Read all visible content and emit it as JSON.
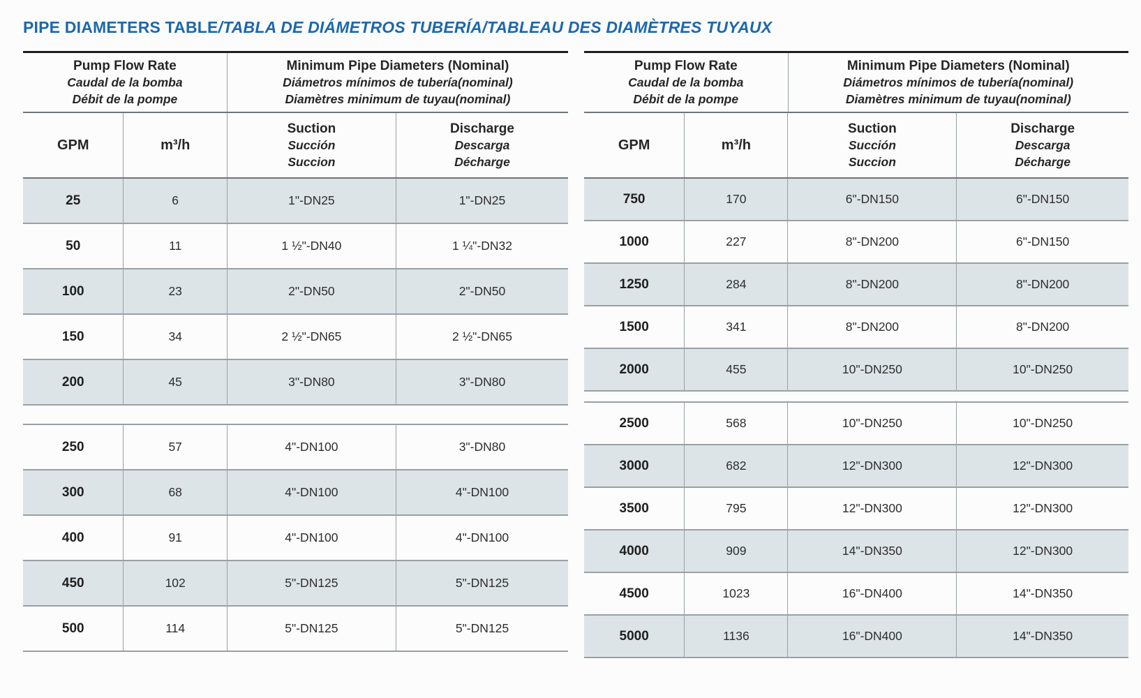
{
  "title": {
    "main": "PIPE DIAMETERS TABLE",
    "translations": "/TABLA DE DIÁMETROS TUBERÍA/TABLEAU DES DIAMÈTRES TUYAUX"
  },
  "colors": {
    "title_blue": "#1b68ae",
    "row_shade": "#dde4e8",
    "top_rule": "#1e1e1e",
    "grid_line": "#98a0a4"
  },
  "header": {
    "flow_group": {
      "en": "Pump Flow Rate",
      "es": "Caudal de la bomba",
      "fr": "Débit de la pompe"
    },
    "diameter_group": {
      "en": "Minimum Pipe Diameters (Nominal)",
      "es": "Diámetros mínimos de tubería(nominal)",
      "fr": "Diamètres minimum de tuyau(nominal)"
    },
    "col_gpm": "GPM",
    "col_m3h": "m³/h",
    "col_suction": {
      "en": "Suction",
      "es": "Succión",
      "fr": "Succion"
    },
    "col_discharge": {
      "en": "Discharge",
      "es": "Descarga",
      "fr": "Décharge"
    }
  },
  "tables": [
    {
      "id": "left",
      "sections": [
        {
          "rows": [
            {
              "gpm": "25",
              "m3h": "6",
              "suction": "1\"-DN25",
              "discharge": "1\"-DN25",
              "shaded": true
            },
            {
              "gpm": "50",
              "m3h": "11",
              "suction": "1 ½\"-DN40",
              "discharge": "1 ¼\"-DN32",
              "shaded": false
            },
            {
              "gpm": "100",
              "m3h": "23",
              "suction": "2\"-DN50",
              "discharge": "2\"-DN50",
              "shaded": true
            },
            {
              "gpm": "150",
              "m3h": "34",
              "suction": "2 ½\"-DN65",
              "discharge": "2 ½\"-DN65",
              "shaded": false
            },
            {
              "gpm": "200",
              "m3h": "45",
              "suction": "3\"-DN80",
              "discharge": "3\"-DN80",
              "shaded": true
            }
          ]
        },
        {
          "rows": [
            {
              "gpm": "250",
              "m3h": "57",
              "suction": "4\"-DN100",
              "discharge": "3\"-DN80",
              "shaded": false
            },
            {
              "gpm": "300",
              "m3h": "68",
              "suction": "4\"-DN100",
              "discharge": "4\"-DN100",
              "shaded": true
            },
            {
              "gpm": "400",
              "m3h": "91",
              "suction": "4\"-DN100",
              "discharge": "4\"-DN100",
              "shaded": false
            },
            {
              "gpm": "450",
              "m3h": "102",
              "suction": "5\"-DN125",
              "discharge": "5\"-DN125",
              "shaded": true
            },
            {
              "gpm": "500",
              "m3h": "114",
              "suction": "5\"-DN125",
              "discharge": "5\"-DN125",
              "shaded": false
            }
          ]
        }
      ]
    },
    {
      "id": "right",
      "sections": [
        {
          "rows": [
            {
              "gpm": "750",
              "m3h": "170",
              "suction": "6\"-DN150",
              "discharge": "6\"-DN150",
              "shaded": true
            },
            {
              "gpm": "1000",
              "m3h": "227",
              "suction": "8\"-DN200",
              "discharge": "6\"-DN150",
              "shaded": false
            },
            {
              "gpm": "1250",
              "m3h": "284",
              "suction": "8\"-DN200",
              "discharge": "8\"-DN200",
              "shaded": true
            },
            {
              "gpm": "1500",
              "m3h": "341",
              "suction": "8\"-DN200",
              "discharge": "8\"-DN200",
              "shaded": false
            },
            {
              "gpm": "2000",
              "m3h": "455",
              "suction": "10\"-DN250",
              "discharge": "10\"-DN250",
              "shaded": true
            }
          ]
        },
        {
          "rows": [
            {
              "gpm": "2500",
              "m3h": "568",
              "suction": "10\"-DN250",
              "discharge": "10\"-DN250",
              "shaded": false
            },
            {
              "gpm": "3000",
              "m3h": "682",
              "suction": "12\"-DN300",
              "discharge": "12\"-DN300",
              "shaded": true
            },
            {
              "gpm": "3500",
              "m3h": "795",
              "suction": "12\"-DN300",
              "discharge": "12\"-DN300",
              "shaded": false
            },
            {
              "gpm": "4000",
              "m3h": "909",
              "suction": "14\"-DN350",
              "discharge": "12\"-DN300",
              "shaded": true
            },
            {
              "gpm": "4500",
              "m3h": "1023",
              "suction": "16\"-DN400",
              "discharge": "14\"-DN350",
              "shaded": false
            },
            {
              "gpm": "5000",
              "m3h": "1136",
              "suction": "16\"-DN400",
              "discharge": "14\"-DN350",
              "shaded": true
            }
          ]
        }
      ]
    }
  ]
}
